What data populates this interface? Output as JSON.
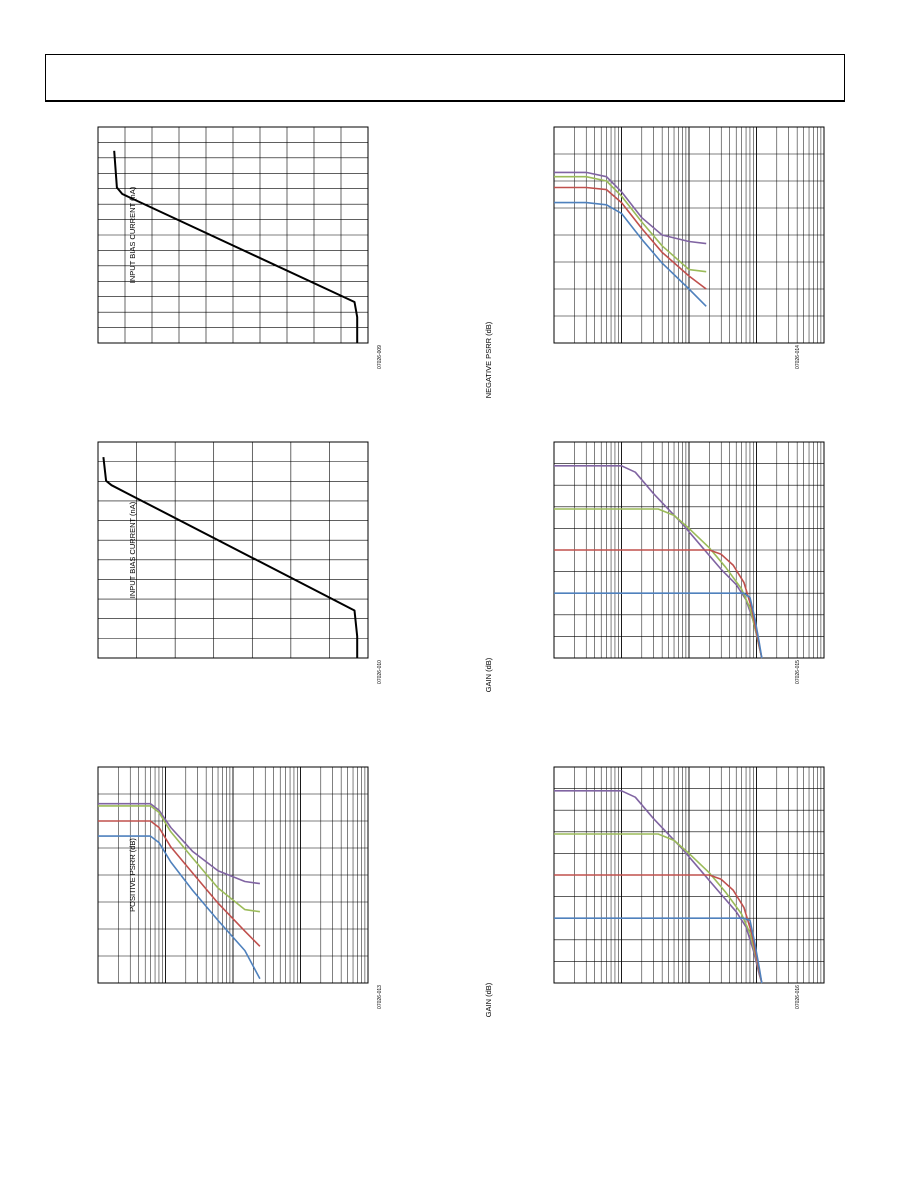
{
  "colors": {
    "purple": "#8064a2",
    "green": "#9bbb59",
    "red": "#c0504d",
    "blue": "#4f81bd",
    "black": "#000000"
  },
  "header": {
    "title": ""
  },
  "chart_data": [
    {
      "id": "c1",
      "type": "line",
      "ylabel": "INPUT BIAS CURRENT (nA)",
      "fig_code": "07026-009",
      "xlim": [
        0,
        1
      ],
      "ylim": [
        0,
        1
      ],
      "xscale": "linear",
      "vgrid": 10,
      "hgrid": 14,
      "series": [
        {
          "color": "black",
          "points": [
            [
              0.06,
              0.89
            ],
            [
              0.07,
              0.72
            ],
            [
              0.09,
              0.69
            ],
            [
              0.95,
              0.19
            ],
            [
              0.96,
              0.12
            ],
            [
              0.96,
              0.0
            ]
          ]
        }
      ]
    },
    {
      "id": "c2",
      "type": "line",
      "ylabel": "NEGATIVE PSRR (dB)",
      "fig_code": "07026-014",
      "xlim": [
        1,
        10000
      ],
      "ylim": [
        0,
        1
      ],
      "xscale": "log",
      "hgrid": 8,
      "series": [
        {
          "color": "purple",
          "points": [
            [
              1,
              0.79
            ],
            [
              3,
              0.79
            ],
            [
              6,
              0.77
            ],
            [
              10,
              0.7
            ],
            [
              20,
              0.58
            ],
            [
              40,
              0.5
            ],
            [
              100,
              0.47
            ],
            [
              180,
              0.46
            ]
          ]
        },
        {
          "color": "green",
          "points": [
            [
              1,
              0.77
            ],
            [
              3,
              0.77
            ],
            [
              6,
              0.75
            ],
            [
              10,
              0.68
            ],
            [
              20,
              0.56
            ],
            [
              40,
              0.45
            ],
            [
              100,
              0.34
            ],
            [
              180,
              0.33
            ]
          ]
        },
        {
          "color": "red",
          "points": [
            [
              1,
              0.72
            ],
            [
              3,
              0.72
            ],
            [
              6,
              0.71
            ],
            [
              10,
              0.65
            ],
            [
              20,
              0.53
            ],
            [
              40,
              0.42
            ],
            [
              100,
              0.31
            ],
            [
              180,
              0.25
            ]
          ]
        },
        {
          "color": "blue",
          "points": [
            [
              1,
              0.65
            ],
            [
              3,
              0.65
            ],
            [
              6,
              0.64
            ],
            [
              10,
              0.6
            ],
            [
              20,
              0.48
            ],
            [
              40,
              0.37
            ],
            [
              100,
              0.25
            ],
            [
              180,
              0.17
            ]
          ]
        }
      ]
    },
    {
      "id": "c3",
      "type": "line",
      "ylabel": "INPUT BIAS CURRENT (nA)",
      "fig_code": "07026-010",
      "xlim": [
        0,
        1
      ],
      "ylim": [
        0,
        1
      ],
      "xscale": "linear",
      "vgrid": 7,
      "hgrid": 11,
      "series": [
        {
          "color": "black",
          "points": [
            [
              0.02,
              0.93
            ],
            [
              0.03,
              0.82
            ],
            [
              0.05,
              0.8
            ],
            [
              0.95,
              0.22
            ],
            [
              0.96,
              0.1
            ],
            [
              0.96,
              0.0
            ]
          ]
        }
      ]
    },
    {
      "id": "c4",
      "type": "line",
      "ylabel": "GAIN (dB)",
      "fig_code": "07026-015",
      "xlim": [
        1,
        10000
      ],
      "ylim": [
        0,
        1
      ],
      "xscale": "log",
      "hgrid": 10,
      "series": [
        {
          "color": "purple",
          "points": [
            [
              1,
              0.89
            ],
            [
              10,
              0.89
            ],
            [
              16,
              0.86
            ],
            [
              30,
              0.76
            ],
            [
              80,
              0.62
            ],
            [
              150,
              0.52
            ],
            [
              300,
              0.41
            ],
            [
              500,
              0.34
            ],
            [
              700,
              0.27
            ],
            [
              900,
              0.17
            ],
            [
              1100,
              0.05
            ],
            [
              1200,
              0.0
            ]
          ]
        },
        {
          "color": "green",
          "points": [
            [
              1,
              0.69
            ],
            [
              35,
              0.69
            ],
            [
              60,
              0.66
            ],
            [
              100,
              0.6
            ],
            [
              200,
              0.51
            ],
            [
              350,
              0.42
            ],
            [
              600,
              0.32
            ],
            [
              800,
              0.23
            ],
            [
              1000,
              0.11
            ],
            [
              1200,
              0.0
            ]
          ]
        },
        {
          "color": "red",
          "points": [
            [
              1,
              0.5
            ],
            [
              200,
              0.5
            ],
            [
              300,
              0.48
            ],
            [
              450,
              0.43
            ],
            [
              650,
              0.35
            ],
            [
              850,
              0.23
            ],
            [
              1000,
              0.12
            ],
            [
              1200,
              0.0
            ]
          ]
        },
        {
          "color": "blue",
          "points": [
            [
              1,
              0.3
            ],
            [
              650,
              0.3
            ],
            [
              800,
              0.28
            ],
            [
              950,
              0.18
            ],
            [
              1100,
              0.07
            ],
            [
              1200,
              0.0
            ]
          ]
        }
      ]
    },
    {
      "id": "c5",
      "type": "line",
      "ylabel": "POSITIVE PSRR (dB)",
      "fig_code": "07026-013",
      "xlim": [
        1,
        10000
      ],
      "ylim": [
        0,
        1
      ],
      "xscale": "log",
      "hgrid": 8,
      "series": [
        {
          "color": "purple",
          "points": [
            [
              1,
              0.83
            ],
            [
              6,
              0.83
            ],
            [
              8,
              0.8
            ],
            [
              12,
              0.72
            ],
            [
              25,
              0.61
            ],
            [
              60,
              0.52
            ],
            [
              150,
              0.47
            ],
            [
              250,
              0.46
            ]
          ]
        },
        {
          "color": "green",
          "points": [
            [
              1,
              0.82
            ],
            [
              6,
              0.82
            ],
            [
              8,
              0.79
            ],
            [
              12,
              0.7
            ],
            [
              25,
              0.58
            ],
            [
              60,
              0.44
            ],
            [
              150,
              0.34
            ],
            [
              250,
              0.33
            ]
          ]
        },
        {
          "color": "red",
          "points": [
            [
              1,
              0.75
            ],
            [
              6,
              0.75
            ],
            [
              8,
              0.72
            ],
            [
              12,
              0.63
            ],
            [
              25,
              0.51
            ],
            [
              60,
              0.37
            ],
            [
              150,
              0.24
            ],
            [
              250,
              0.17
            ]
          ]
        },
        {
          "color": "blue",
          "points": [
            [
              1,
              0.68
            ],
            [
              6,
              0.68
            ],
            [
              8,
              0.65
            ],
            [
              12,
              0.56
            ],
            [
              25,
              0.43
            ],
            [
              60,
              0.29
            ],
            [
              150,
              0.15
            ],
            [
              250,
              0.02
            ]
          ]
        }
      ]
    },
    {
      "id": "c6",
      "type": "line",
      "ylabel": "GAIN (dB)",
      "fig_code": "07026-016",
      "xlim": [
        1,
        10000
      ],
      "ylim": [
        0,
        1
      ],
      "xscale": "log",
      "hgrid": 10,
      "series": [
        {
          "color": "purple",
          "points": [
            [
              1,
              0.89
            ],
            [
              10,
              0.89
            ],
            [
              16,
              0.86
            ],
            [
              30,
              0.76
            ],
            [
              80,
              0.62
            ],
            [
              150,
              0.52
            ],
            [
              300,
              0.41
            ],
            [
              500,
              0.33
            ],
            [
              700,
              0.26
            ],
            [
              900,
              0.15
            ],
            [
              1100,
              0.04
            ],
            [
              1200,
              0.0
            ]
          ]
        },
        {
          "color": "green",
          "points": [
            [
              1,
              0.69
            ],
            [
              35,
              0.69
            ],
            [
              60,
              0.66
            ],
            [
              100,
              0.6
            ],
            [
              200,
              0.51
            ],
            [
              350,
              0.42
            ],
            [
              600,
              0.32
            ],
            [
              800,
              0.23
            ],
            [
              1000,
              0.11
            ],
            [
              1200,
              0.0
            ]
          ]
        },
        {
          "color": "red",
          "points": [
            [
              1,
              0.5
            ],
            [
              200,
              0.5
            ],
            [
              300,
              0.48
            ],
            [
              450,
              0.43
            ],
            [
              650,
              0.35
            ],
            [
              850,
              0.23
            ],
            [
              1000,
              0.12
            ],
            [
              1200,
              0.0
            ]
          ]
        },
        {
          "color": "blue",
          "points": [
            [
              1,
              0.3
            ],
            [
              650,
              0.3
            ],
            [
              800,
              0.29
            ],
            [
              950,
              0.18
            ],
            [
              1100,
              0.07
            ],
            [
              1200,
              0.0
            ]
          ]
        }
      ]
    }
  ]
}
